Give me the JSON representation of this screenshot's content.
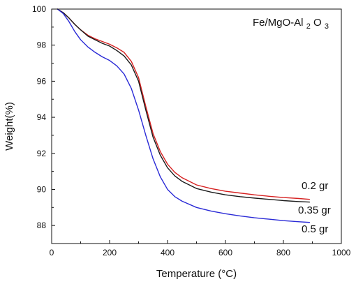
{
  "chart_data": {
    "type": "line",
    "xlabel": "Temperature (°C)",
    "ylabel": "Weight(%)",
    "xlim": [
      0,
      1000
    ],
    "ylim": [
      87,
      100
    ],
    "xticks": [
      0,
      200,
      400,
      600,
      800,
      1000
    ],
    "yticks": [
      88,
      90,
      92,
      94,
      96,
      98,
      100
    ],
    "grid": false,
    "annotation": {
      "prefix": "Fe/MgO-Al",
      "sub1": "2",
      "mid": "O",
      "sub2": "3"
    },
    "series": [
      {
        "name": "0.2 gr",
        "color": "#d62020",
        "x": [
          20,
          40,
          60,
          80,
          100,
          125,
          150,
          175,
          200,
          225,
          250,
          275,
          300,
          325,
          350,
          375,
          400,
          425,
          450,
          500,
          550,
          600,
          650,
          700,
          750,
          800,
          850,
          890
        ],
        "y": [
          100.0,
          99.8,
          99.5,
          99.15,
          98.85,
          98.55,
          98.35,
          98.2,
          98.05,
          97.85,
          97.6,
          97.1,
          96.2,
          94.6,
          93.1,
          92.1,
          91.4,
          90.95,
          90.65,
          90.25,
          90.05,
          89.9,
          89.8,
          89.7,
          89.62,
          89.55,
          89.5,
          89.45
        ]
      },
      {
        "name": "0.35 gr",
        "color": "#1a1a1a",
        "x": [
          20,
          40,
          60,
          80,
          100,
          125,
          150,
          175,
          200,
          225,
          250,
          275,
          300,
          325,
          350,
          375,
          400,
          425,
          450,
          500,
          550,
          600,
          650,
          700,
          750,
          800,
          850,
          890
        ],
        "y": [
          100.0,
          99.8,
          99.5,
          99.15,
          98.85,
          98.5,
          98.3,
          98.1,
          97.95,
          97.7,
          97.4,
          96.9,
          96.0,
          94.4,
          92.9,
          91.9,
          91.2,
          90.75,
          90.45,
          90.05,
          89.85,
          89.7,
          89.6,
          89.52,
          89.45,
          89.38,
          89.33,
          89.3
        ]
      },
      {
        "name": "0.5 gr",
        "color": "#2a2ad6",
        "x": [
          20,
          40,
          60,
          80,
          100,
          125,
          150,
          175,
          200,
          225,
          250,
          275,
          300,
          325,
          350,
          375,
          400,
          425,
          450,
          500,
          550,
          600,
          650,
          700,
          750,
          800,
          850,
          890
        ],
        "y": [
          100.0,
          99.75,
          99.3,
          98.75,
          98.3,
          97.9,
          97.6,
          97.35,
          97.15,
          96.85,
          96.4,
          95.6,
          94.4,
          93.0,
          91.7,
          90.7,
          90.0,
          89.6,
          89.35,
          89.0,
          88.8,
          88.65,
          88.53,
          88.43,
          88.35,
          88.27,
          88.21,
          88.17
        ]
      }
    ]
  }
}
